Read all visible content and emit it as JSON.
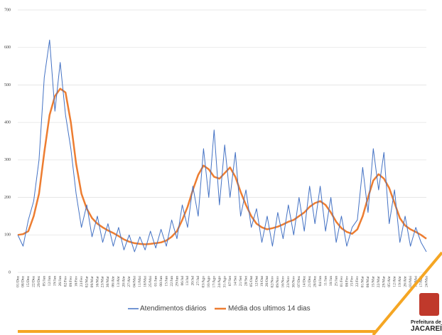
{
  "chart_data": {
    "type": "line",
    "categories": [
      "01/Dez",
      "08/Dez",
      "15/Dez",
      "22/Dez",
      "29/Dez",
      "05/Jan",
      "12/Jan",
      "19/Jan",
      "26/Jan",
      "02/Fev",
      "09/Fev",
      "16/Fev",
      "23/Fev",
      "02/Mar",
      "09/Mar",
      "16/Mar",
      "23/Mar",
      "30/Mar",
      "06/Abr",
      "13/Abr",
      "20/Abr",
      "27/Abr",
      "04/Mai",
      "11/Mai",
      "18/Mai",
      "25/Mai",
      "01/Jun",
      "08/Jun",
      "15/Jun",
      "22/Jun",
      "29/Jun",
      "06/Jul",
      "13/Jul",
      "20/Jul",
      "27/Jul",
      "03/Ago",
      "10/Ago",
      "17/Ago",
      "24/Ago",
      "31/Ago",
      "07/Set",
      "14/Set",
      "21/Set",
      "28/Set",
      "05/Out",
      "12/Out",
      "19/Out",
      "26/Out",
      "02/Nov",
      "09/Nov",
      "16/Nov",
      "23/Nov",
      "30/Nov",
      "07/Dez",
      "14/Dez",
      "21/Dez",
      "28/Dez",
      "04/Jan",
      "11/Jan",
      "18/Jan",
      "25/Jan",
      "01/Fev",
      "08/Fev",
      "15/Fev",
      "22/Fev",
      "01/Mar",
      "08/Mar",
      "15/Mar",
      "22/Mar",
      "29/Mar",
      "05/Abr",
      "12/Abr",
      "19/Abr",
      "26/Abr",
      "03/Mai",
      "10/Mai",
      "17/Mai",
      "24/Mai"
    ],
    "series": [
      {
        "name": "Atendimentos diários",
        "color": "#4472c4",
        "width": 1,
        "values": [
          100,
          70,
          140,
          190,
          300,
          520,
          620,
          430,
          560,
          420,
          330,
          210,
          120,
          180,
          95,
          150,
          80,
          130,
          70,
          120,
          60,
          100,
          55,
          95,
          60,
          110,
          65,
          115,
          70,
          140,
          90,
          180,
          120,
          230,
          150,
          330,
          200,
          380,
          180,
          340,
          200,
          320,
          150,
          220,
          120,
          170,
          80,
          150,
          70,
          160,
          90,
          180,
          100,
          200,
          110,
          230,
          130,
          230,
          110,
          200,
          80,
          150,
          70,
          120,
          140,
          280,
          160,
          330,
          220,
          320,
          130,
          220,
          80,
          150,
          70,
          120,
          80,
          55
        ]
      },
      {
        "name": "Média dos ultimos 14 dias",
        "color": "#ed7d31",
        "width": 2.5,
        "values": [
          100,
          102,
          110,
          150,
          210,
          320,
          420,
          470,
          490,
          480,
          400,
          290,
          210,
          170,
          145,
          130,
          120,
          112,
          105,
          97,
          88,
          82,
          78,
          76,
          75,
          76,
          78,
          80,
          85,
          95,
          110,
          140,
          175,
          220,
          260,
          285,
          275,
          255,
          250,
          265,
          280,
          255,
          215,
          180,
          150,
          130,
          120,
          115,
          118,
          122,
          128,
          135,
          140,
          150,
          160,
          175,
          185,
          190,
          180,
          160,
          135,
          118,
          108,
          103,
          115,
          150,
          200,
          245,
          262,
          250,
          225,
          185,
          145,
          125,
          115,
          108,
          100,
          90
        ]
      }
    ],
    "ylim": [
      0,
      700
    ],
    "yticks": [
      0,
      100,
      200,
      300,
      400,
      500,
      600,
      700
    ],
    "grid": true,
    "logo": {
      "line1": "Prefeitura de",
      "line2": "JACAREÍ"
    }
  }
}
